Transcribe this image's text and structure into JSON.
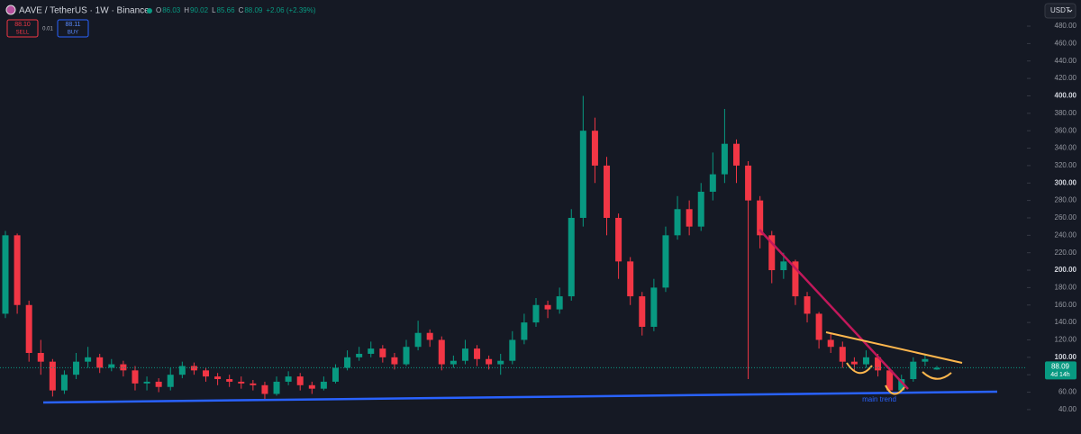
{
  "header": {
    "symbol": "AAVE / TetherUS · 1W · Binance",
    "ohlc": [
      {
        "key": "O",
        "val": "86.03"
      },
      {
        "key": "H",
        "val": "90.02"
      },
      {
        "key": "L",
        "val": "85.66"
      },
      {
        "key": "C",
        "val": "88.09"
      }
    ],
    "change": "+2.06 (+2.39%)"
  },
  "order_panel": {
    "sell_price": "88.10",
    "sell": "SELL",
    "spread": "0.01",
    "buy_price": "88.11",
    "buy": "BUY"
  },
  "currency": "USDT",
  "last_price": {
    "price": "88.09",
    "countdown": "4d 14h"
  },
  "chart_data": {
    "type": "candlestick",
    "up_color": "#089981",
    "down_color": "#f23645",
    "open": [
      150,
      240,
      160,
      105,
      95,
      62,
      80,
      95,
      100,
      88,
      92,
      85,
      70,
      72,
      66,
      80,
      90,
      85,
      78,
      75,
      72,
      70,
      68,
      58,
      72,
      78,
      68,
      64,
      72,
      88,
      100,
      104,
      110,
      100,
      92,
      112,
      128,
      120,
      92,
      96,
      110,
      98,
      92,
      96,
      120,
      140,
      160,
      155,
      170,
      260,
      360,
      320,
      260,
      210,
      170,
      135,
      180,
      240,
      270,
      250,
      290,
      310,
      345,
      320,
      280,
      240,
      200,
      210,
      170,
      150,
      120,
      112,
      95,
      92,
      100,
      85,
      62,
      75,
      95,
      86.03
    ],
    "high": [
      245,
      242,
      165,
      120,
      98,
      85,
      105,
      112,
      104,
      98,
      96,
      90,
      78,
      76,
      88,
      95,
      94,
      88,
      82,
      80,
      78,
      74,
      72,
      78,
      84,
      82,
      72,
      78,
      92,
      108,
      112,
      118,
      114,
      105,
      120,
      142,
      132,
      124,
      102,
      120,
      114,
      102,
      104,
      130,
      150,
      168,
      165,
      180,
      270,
      400,
      375,
      330,
      265,
      215,
      175,
      190,
      250,
      285,
      280,
      300,
      335,
      385,
      350,
      325,
      285,
      245,
      220,
      212,
      175,
      152,
      128,
      118,
      100,
      108,
      104,
      88,
      80,
      100,
      104,
      90.02
    ],
    "low": [
      145,
      150,
      95,
      80,
      55,
      58,
      75,
      88,
      82,
      84,
      78,
      62,
      62,
      60,
      62,
      76,
      80,
      72,
      68,
      66,
      64,
      62,
      52,
      56,
      68,
      62,
      58,
      62,
      70,
      85,
      96,
      100,
      94,
      86,
      90,
      108,
      112,
      85,
      88,
      92,
      90,
      86,
      80,
      92,
      115,
      135,
      145,
      150,
      165,
      250,
      300,
      240,
      190,
      160,
      125,
      130,
      175,
      235,
      240,
      245,
      280,
      300,
      300,
      75,
      225,
      185,
      190,
      160,
      140,
      110,
      105,
      88,
      85,
      88,
      78,
      58,
      60,
      72,
      90,
      85.66
    ],
    "close": [
      240,
      160,
      105,
      95,
      62,
      80,
      95,
      100,
      88,
      92,
      85,
      70,
      72,
      66,
      80,
      90,
      85,
      78,
      75,
      72,
      70,
      68,
      58,
      72,
      78,
      68,
      64,
      72,
      88,
      100,
      104,
      110,
      100,
      92,
      112,
      128,
      120,
      92,
      96,
      110,
      98,
      92,
      96,
      120,
      140,
      160,
      155,
      170,
      260,
      360,
      320,
      260,
      210,
      170,
      135,
      180,
      240,
      270,
      250,
      290,
      310,
      345,
      320,
      280,
      240,
      200,
      210,
      170,
      150,
      120,
      112,
      95,
      92,
      100,
      85,
      62,
      75,
      95,
      98,
      88.09
    ],
    "ylim": [
      12,
      510
    ],
    "yticks": [
      {
        "value": 40,
        "label": "40.00"
      },
      {
        "value": 60,
        "label": "60.00"
      },
      {
        "value": 80,
        "label": "80.00"
      },
      {
        "value": 100,
        "label": "100.00"
      },
      {
        "value": 120,
        "label": "120.00"
      },
      {
        "value": 140,
        "label": "140.00"
      },
      {
        "value": 160,
        "label": "160.00"
      },
      {
        "value": 180,
        "label": "180.00"
      },
      {
        "value": 200,
        "label": "200.00"
      },
      {
        "value": 220,
        "label": "220.00"
      },
      {
        "value": 240,
        "label": "240.00"
      },
      {
        "value": 260,
        "label": "260.00"
      },
      {
        "value": 280,
        "label": "280.00"
      },
      {
        "value": 300,
        "label": "300.00"
      },
      {
        "value": 320,
        "label": "320.00"
      },
      {
        "value": 340,
        "label": "340.00"
      },
      {
        "value": 360,
        "label": "360.00"
      },
      {
        "value": 380,
        "label": "380.00"
      },
      {
        "value": 400,
        "label": "400.00"
      },
      {
        "value": 420,
        "label": "420.00"
      },
      {
        "value": 440,
        "label": "440.00"
      },
      {
        "value": 460,
        "label": "460.00"
      },
      {
        "value": 480,
        "label": "480.00"
      }
    ],
    "annotation": "main trend"
  }
}
